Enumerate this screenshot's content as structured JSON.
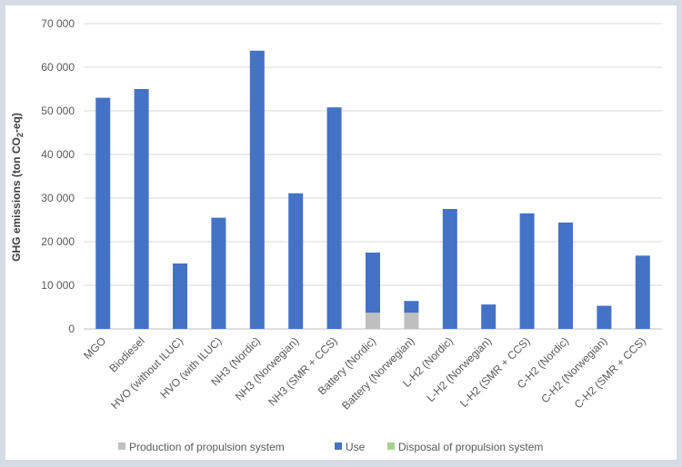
{
  "chart_data": {
    "type": "bar",
    "stacked": true,
    "ylabel": "GHG emissions (ton CO",
    "ylabel_sub": "2",
    "ylabel_end": "-eq)",
    "ylim": [
      0,
      70000
    ],
    "yticks": [
      0,
      10000,
      20000,
      30000,
      40000,
      50000,
      60000,
      70000
    ],
    "ytick_labels": [
      "0",
      "10 000",
      "20 000",
      "30 000",
      "40 000",
      "50 000",
      "60 000",
      "70 000"
    ],
    "grid": true,
    "legend_position": "bottom",
    "categories": [
      "MGO",
      "Biodiesel",
      "HVO (without ILUC)",
      "HVO (with ILUC)",
      "NH3 (Nordic)",
      "NH3 (Norwegian)",
      "NH3 (SMR + CCS)",
      "Battery (Nordic)",
      "Battery (Norwegian)",
      "L-H2 (Nordic)",
      "L-H2 (Norwegian)",
      "L-H2 (SMR + CCS)",
      "C-H2 (Nordic)",
      "C-H2 (Norwegian)",
      "C-H2 (SMR + CCS)"
    ],
    "series": [
      {
        "name": "Production of propulsion system",
        "color": "#bfbfbf",
        "values": [
          0,
          0,
          0,
          0,
          0,
          0,
          0,
          3700,
          3700,
          0,
          0,
          0,
          0,
          0,
          0
        ]
      },
      {
        "name": "Use",
        "color": "#4472c4",
        "values": [
          53000,
          55000,
          15000,
          25500,
          63800,
          31100,
          50800,
          13800,
          2700,
          27500,
          5600,
          26500,
          24400,
          5300,
          16800
        ]
      },
      {
        "name": "Disposal of propulsion system",
        "color": "#a9d18e",
        "values": [
          0,
          0,
          0,
          0,
          0,
          0,
          0,
          0,
          0,
          0,
          0,
          0,
          0,
          0,
          0
        ]
      }
    ]
  }
}
